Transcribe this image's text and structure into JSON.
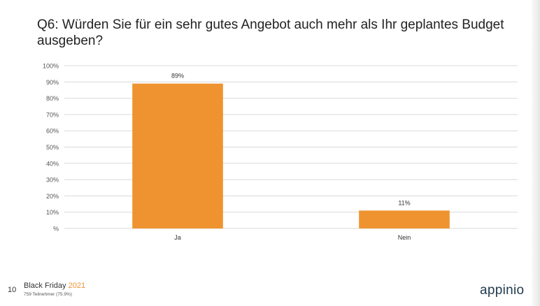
{
  "title": "Q6: Würden Sie für ein sehr gutes Angebot auch mehr als Ihr geplantes Budget ausgeben?",
  "chart_data": {
    "type": "bar",
    "categories": [
      "Ja",
      "Nein"
    ],
    "values": [
      89,
      11
    ],
    "data_labels": [
      "89%",
      "11%"
    ],
    "ylim": [
      0,
      100
    ],
    "y_ticks": [
      0,
      10,
      20,
      30,
      40,
      50,
      60,
      70,
      80,
      90,
      100
    ],
    "y_tick_labels": [
      "%",
      "10%",
      "20%",
      "30%",
      "40%",
      "50%",
      "60%",
      "70%",
      "80%",
      "90%",
      "100%"
    ],
    "grid": true,
    "legend": "none",
    "bar_color": "#ee9330"
  },
  "footer": {
    "page_number": "10",
    "brand": "Black Friday",
    "year": "2021",
    "participants": "759 Teilnehmer (75.9%)",
    "logo_text": "appinio"
  },
  "colors": {
    "accent": "#ee9330",
    "logo": "#1f3a4d",
    "grid": "#d9d9d9"
  }
}
